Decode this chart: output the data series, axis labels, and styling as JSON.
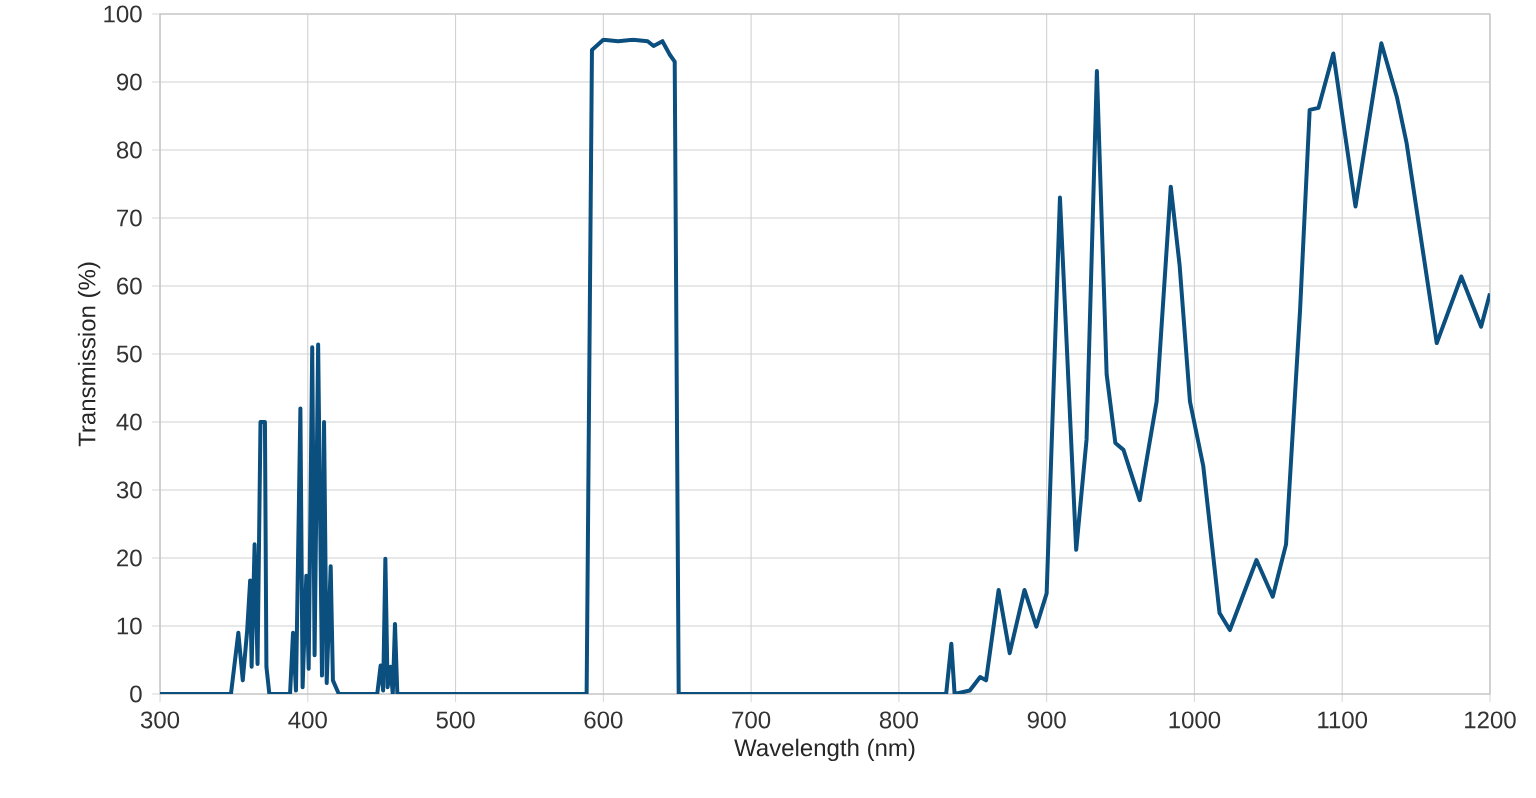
{
  "chart_data": {
    "type": "line",
    "xlabel": "Wavelength (nm)",
    "ylabel": "Transmission (%)",
    "xlim": [
      300,
      1200
    ],
    "ylim": [
      0,
      100
    ],
    "xticks": [
      300,
      400,
      500,
      600,
      700,
      800,
      900,
      1000,
      1100,
      1200
    ],
    "yticks": [
      0,
      10,
      20,
      30,
      40,
      50,
      60,
      70,
      80,
      90,
      100
    ],
    "grid": true,
    "marker": "none",
    "line_style": "solid",
    "series": [
      {
        "color": "#0b4f7f",
        "x": [
          300,
          348,
          353,
          356,
          359,
          361,
          362,
          364,
          366,
          368,
          370,
          371,
          372,
          374,
          388,
          390,
          392,
          395,
          396.5,
          399,
          400.6,
          403,
          404.6,
          407,
          409.6,
          411,
          412.8,
          415.5,
          417,
          421,
          447,
          449.3,
          451,
          452.5,
          454,
          456,
          457.5,
          459,
          460.6,
          588.7,
          592.3,
          600,
          610,
          620,
          630,
          634,
          640,
          645,
          648.3,
          651,
          832,
          835.5,
          837.7,
          848,
          855,
          859,
          867.5,
          875,
          885,
          893,
          900,
          909,
          920,
          927,
          934,
          940.6,
          946.5,
          952,
          963,
          974.4,
          984,
          990,
          997,
          1006,
          1017,
          1024,
          1042,
          1053,
          1062,
          1071.5,
          1078,
          1084,
          1094,
          1109,
          1126.5,
          1137,
          1143.6,
          1164,
          1180.6,
          1194,
          1200
        ],
        "values": [
          0,
          0,
          9,
          2,
          9.4,
          16.7,
          4,
          22,
          4.4,
          40,
          40,
          40,
          4,
          0,
          0,
          9,
          0.5,
          42,
          1,
          17.4,
          3.7,
          51,
          5.7,
          51.4,
          2.7,
          40,
          1.6,
          18.8,
          2,
          0,
          0,
          4.2,
          0.5,
          19.9,
          1,
          4,
          0,
          10.3,
          0,
          0,
          94.7,
          96.2,
          96,
          96.2,
          96,
          95.3,
          96,
          94,
          93,
          0,
          0,
          7.4,
          0,
          0.5,
          2.5,
          2,
          15.3,
          6,
          15.3,
          9.9,
          14.8,
          73,
          21.2,
          37.4,
          91.6,
          47,
          36.9,
          35.9,
          28.5,
          43,
          74.6,
          63,
          43,
          33.5,
          11.9,
          9.4,
          19.7,
          14.3,
          22,
          56.5,
          85.9,
          86.2,
          94.2,
          71.7,
          95.7,
          87.8,
          81,
          51.6,
          61.4,
          54,
          58.9
        ]
      }
    ]
  }
}
